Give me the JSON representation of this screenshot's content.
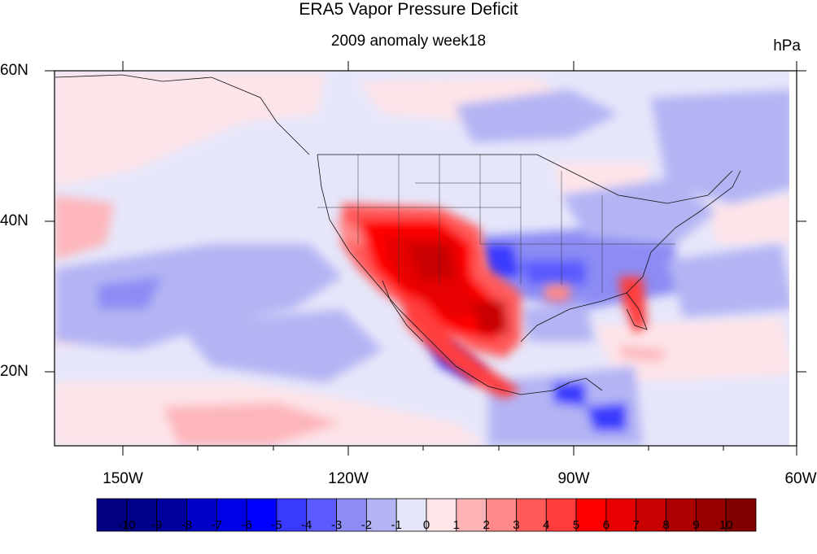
{
  "header": {
    "title": "ERA5 Vapor Pressure Deficit",
    "subtitle": "2009 anomaly week18",
    "units": "hPa"
  },
  "axes": {
    "lon_labels": [
      "150W",
      "120W",
      "90W",
      "60W"
    ],
    "lat_labels": [
      "60N",
      "40N",
      "20N"
    ]
  },
  "colorbar": {
    "labels": [
      "-10",
      "-9",
      "-8",
      "-7",
      "-6",
      "-5",
      "-4",
      "-3",
      "-2",
      "-1",
      "0",
      "1",
      "2",
      "3",
      "4",
      "5",
      "6",
      "7",
      "8",
      "9",
      "10"
    ],
    "colors": [
      "#000080",
      "#00008b",
      "#00009f",
      "#0000c8",
      "#0000e6",
      "#0000ff",
      "#3a3aff",
      "#5a5aff",
      "#8c8cf4",
      "#b4b4f4",
      "#e6e6fa",
      "#ffe4e8",
      "#ffb4b8",
      "#ff8888",
      "#ff5a5a",
      "#ff3c3c",
      "#ff0000",
      "#e60000",
      "#c80000",
      "#aa0000",
      "#960000",
      "#800000"
    ]
  },
  "map": {
    "projection": "lat-lon",
    "lon_range": [
      -159,
      -60
    ],
    "lat_range": [
      10,
      60
    ]
  }
}
